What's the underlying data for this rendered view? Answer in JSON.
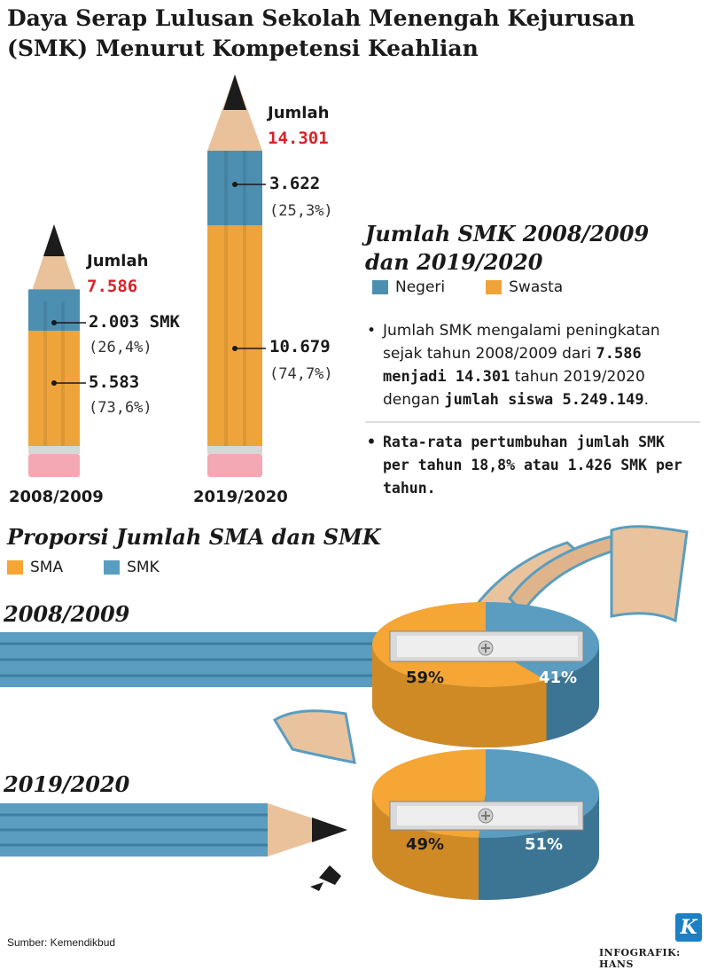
{
  "title_line1": "Daya Serap Lulusan Sekolah Menengah Kejurusan",
  "title_line2": "(SMK) Menurut Kompetensi Keahlian",
  "colors": {
    "negeri": "#4d8fb0",
    "swasta": "#eea43a",
    "sma": "#f5a634",
    "smk": "#5a9dc0",
    "total_red": "#d8232a"
  },
  "chart_data": [
    {
      "type": "bar",
      "title": "Jumlah SMK 2008/2009 dan 2019/2020",
      "categories": [
        "2008/2009",
        "2019/2020"
      ],
      "series": [
        {
          "name": "Negeri",
          "values": [
            2003,
            3622
          ]
        },
        {
          "name": "Swasta",
          "values": [
            5583,
            10679
          ]
        }
      ],
      "totals": [
        7586,
        14301
      ]
    },
    {
      "type": "pie",
      "title": "Proporsi Jumlah SMA dan SMK",
      "year": "2008/2009",
      "labels": [
        "SMA",
        "SMK"
      ],
      "values": [
        59,
        41
      ]
    },
    {
      "type": "pie",
      "title": "Proporsi Jumlah SMA dan SMK",
      "year": "2019/2020",
      "labels": [
        "SMA",
        "SMK"
      ],
      "values": [
        49,
        51
      ]
    }
  ],
  "bars": {
    "y2008": {
      "year": "2008/2009",
      "jumlah_label": "Jumlah",
      "total": "7.586",
      "negeri_value": "2.003 SMK",
      "negeri_pct": "(26,4%)",
      "swasta_value": "5.583",
      "swasta_pct": "(73,6%)"
    },
    "y2019": {
      "year": "2019/2020",
      "jumlah_label": "Jumlah",
      "total": "14.301",
      "negeri_value": "3.622",
      "negeri_pct": "(25,3%)",
      "swasta_value": "10.679",
      "swasta_pct": "(74,7%)"
    }
  },
  "smk_section": {
    "title_line1": "Jumlah SMK 2008/2009",
    "title_line2": "dan 2019/2020",
    "legend_negeri": "Negeri",
    "legend_swasta": "Swasta",
    "bullet1": {
      "t1": "Jumlah SMK mengalami peningkatan sejak tahun 2008/2009 dari ",
      "b1": "7.586 menjadi 14.301",
      "t2": " tahun 2019/2020 dengan ",
      "b2": "jumlah siswa 5.249.149",
      "t3": "."
    },
    "bullet2": "Rata-rata pertumbuhan jumlah SMK per tahun 18,8% atau 1.426 SMK per tahun."
  },
  "proporsi_section": {
    "title": "Proporsi Jumlah SMA dan SMK",
    "legend_sma": "SMA",
    "legend_smk": "SMK",
    "year1": "2008/2009",
    "year2": "2019/2020",
    "pie1_sma": "59%",
    "pie1_smk": "41%",
    "pie2_sma": "49%",
    "pie2_smk": "51%"
  },
  "source": "Sumber: Kemendikbud",
  "credit": "INFOGRAFIK: HANS",
  "logo_letter": "K"
}
